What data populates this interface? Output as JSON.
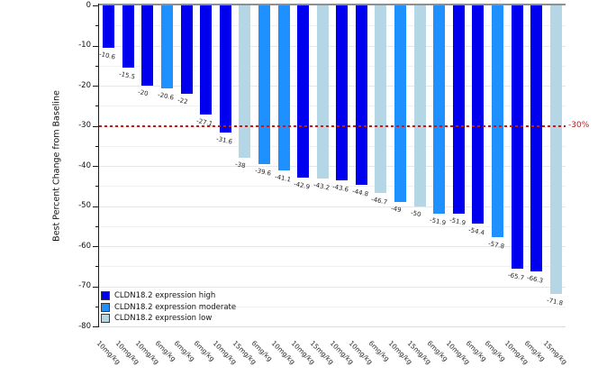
{
  "chart_data": {
    "type": "bar",
    "subtype": "waterfall",
    "title": "",
    "xlabel": "",
    "ylabel": "Best Percent Change from Baseline",
    "ylim": [
      -80,
      0
    ],
    "yticks": [
      0,
      -10,
      -20,
      -30,
      -40,
      -50,
      -60,
      -70,
      -80
    ],
    "minor_tick_step": 5,
    "grid": "horizontal, minor every 5",
    "legend_position": "lower-left",
    "reference_line": {
      "y": -30,
      "label": "-30%",
      "color": "#b22222",
      "style": "dashed"
    },
    "series_colors": {
      "high": "#0000ee",
      "moderate": "#1e90ff",
      "low": "#b5d7e5"
    },
    "legend_entries": [
      {
        "group": "high",
        "label": "CLDN18.2 expression high"
      },
      {
        "group": "moderate",
        "label": "CLDN18.2 expression moderate"
      },
      {
        "group": "low",
        "label": "CLDN18.2 expression low"
      }
    ],
    "bars": [
      {
        "dose": "10mg/kg",
        "value": -10.6,
        "group": "high"
      },
      {
        "dose": "10mg/kg",
        "value": -15.5,
        "group": "high"
      },
      {
        "dose": "10mg/kg",
        "value": -20,
        "group": "high"
      },
      {
        "dose": "6mg/kg",
        "value": -20.6,
        "group": "moderate"
      },
      {
        "dose": "6mg/kg",
        "value": -22,
        "group": "high"
      },
      {
        "dose": "6mg/kg",
        "value": -27.1,
        "group": "high"
      },
      {
        "dose": "10mg/kg",
        "value": -31.6,
        "group": "high"
      },
      {
        "dose": "15mg/kg",
        "value": -38,
        "group": "low"
      },
      {
        "dose": "6mg/kg",
        "value": -39.6,
        "group": "moderate"
      },
      {
        "dose": "10mg/kg",
        "value": -41.1,
        "group": "moderate"
      },
      {
        "dose": "10mg/kg",
        "value": -42.9,
        "group": "high"
      },
      {
        "dose": "15mg/kg",
        "value": -43.2,
        "group": "low"
      },
      {
        "dose": "10mg/kg",
        "value": -43.6,
        "group": "high"
      },
      {
        "dose": "10mg/kg",
        "value": -44.8,
        "group": "high"
      },
      {
        "dose": "6mg/kg",
        "value": -46.7,
        "group": "low"
      },
      {
        "dose": "10mg/kg",
        "value": -49,
        "group": "moderate"
      },
      {
        "dose": "15mg/kg",
        "value": -50,
        "group": "low"
      },
      {
        "dose": "6mg/kg",
        "value": -51.9,
        "group": "moderate"
      },
      {
        "dose": "10mg/kg",
        "value": -51.9,
        "group": "high"
      },
      {
        "dose": "6mg/kg",
        "value": -54.4,
        "group": "high"
      },
      {
        "dose": "6mg/kg",
        "value": -57.8,
        "group": "moderate"
      },
      {
        "dose": "10mg/kg",
        "value": -65.7,
        "group": "high"
      },
      {
        "dose": "6mg/kg",
        "value": -66.3,
        "group": "high"
      },
      {
        "dose": "15mg/kg",
        "value": -71.8,
        "group": "low"
      }
    ]
  }
}
